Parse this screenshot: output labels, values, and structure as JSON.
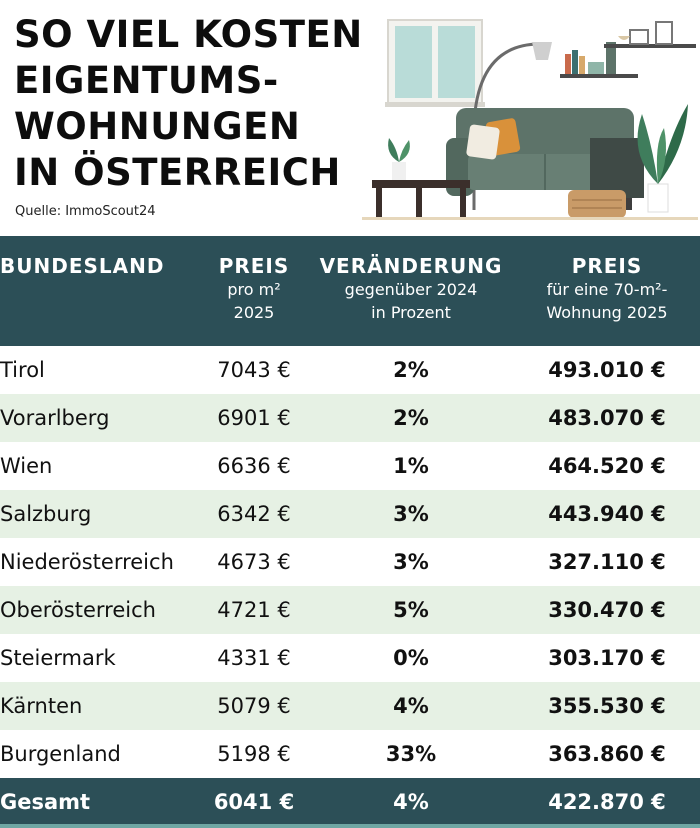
{
  "title_lines": [
    "SO VIEL KOSTEN",
    "EIGENTUMS-",
    "WOHNUNGEN",
    "IN ÖSTERREICH"
  ],
  "source": "Quelle: ImmoScout24",
  "table": {
    "headers": [
      {
        "main": "BUNDESLAND",
        "sub": []
      },
      {
        "main": "PREIS",
        "sub": [
          "pro m²",
          "2025"
        ]
      },
      {
        "main": "VERÄNDERUNG",
        "sub": [
          "gegenüber 2024",
          "in Prozent"
        ]
      },
      {
        "main": "PREIS",
        "sub": [
          "für eine 70-m²-",
          "Wohnung 2025"
        ]
      }
    ],
    "rows": [
      [
        "Tirol",
        "7043 €",
        "2%",
        "493.010 €"
      ],
      [
        "Vorarlberg",
        "6901 €",
        "2%",
        "483.070 €"
      ],
      [
        "Wien",
        "6636 €",
        "1%",
        "464.520 €"
      ],
      [
        "Salzburg",
        "6342 €",
        "3%",
        "443.940 €"
      ],
      [
        "Niederösterreich",
        "4673 €",
        "3%",
        "327.110 €"
      ],
      [
        "Oberösterreich",
        "4721 €",
        "5%",
        "330.470 €"
      ],
      [
        "Steiermark",
        "4331 €",
        "0%",
        "303.170 €"
      ],
      [
        "Kärnten",
        "5079 €",
        "4%",
        "355.530 €"
      ],
      [
        "Burgenland",
        "5198 €",
        "33%",
        "363.860 €"
      ]
    ],
    "total": [
      "Gesamt",
      "6041 €",
      "4%",
      "422.870 €"
    ]
  },
  "colors": {
    "header_bg": "#2c4f57",
    "row_alt_bg": "#e6f1e4",
    "sofa": "#5d7369",
    "accent_pillow": "#d9913a"
  },
  "illustration_icons": [
    "window-icon",
    "floor-lamp-icon",
    "shelf-icon",
    "sofa-icon",
    "plant-icon",
    "coffee-table-icon",
    "pouf-icon"
  ]
}
